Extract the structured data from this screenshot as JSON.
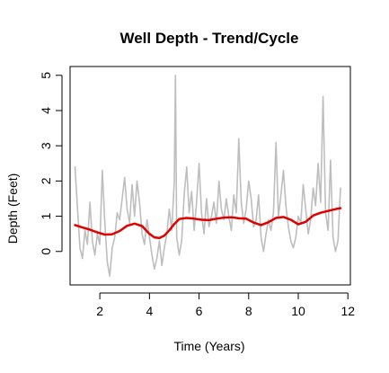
{
  "chart_data": {
    "type": "line",
    "title": "Well Depth - Trend/Cycle",
    "xlabel": "Time (Years)",
    "ylabel": "Depth (Feet)",
    "xlim": [
      0.8,
      12.1
    ],
    "ylim": [
      -0.95,
      5.25
    ],
    "xticks": [
      2,
      4,
      6,
      8,
      10,
      12
    ],
    "yticks": [
      0,
      1,
      2,
      3,
      4,
      5
    ],
    "grid": false,
    "legend": "none",
    "series": [
      {
        "role": "observed",
        "color": "#bebebe",
        "x": [
          1.0,
          1.1,
          1.2,
          1.3,
          1.4,
          1.5,
          1.6,
          1.7,
          1.8,
          1.9,
          2.0,
          2.1,
          2.2,
          2.3,
          2.4,
          2.5,
          2.6,
          2.7,
          2.8,
          2.9,
          3.0,
          3.1,
          3.2,
          3.3,
          3.4,
          3.5,
          3.6,
          3.7,
          3.8,
          3.9,
          4.0,
          4.1,
          4.2,
          4.3,
          4.4,
          4.5,
          4.6,
          4.7,
          4.8,
          4.9,
          5.0,
          5.05,
          5.1,
          5.2,
          5.3,
          5.4,
          5.5,
          5.6,
          5.7,
          5.8,
          5.9,
          6.0,
          6.1,
          6.2,
          6.3,
          6.4,
          6.5,
          6.6,
          6.7,
          6.8,
          6.9,
          7.0,
          7.1,
          7.2,
          7.3,
          7.4,
          7.5,
          7.6,
          7.7,
          7.8,
          7.9,
          8.0,
          8.1,
          8.2,
          8.3,
          8.4,
          8.5,
          8.6,
          8.7,
          8.8,
          8.9,
          9.0,
          9.1,
          9.2,
          9.3,
          9.4,
          9.5,
          9.6,
          9.7,
          9.8,
          9.9,
          10.0,
          10.1,
          10.2,
          10.3,
          10.4,
          10.5,
          10.6,
          10.7,
          10.8,
          10.9,
          11.0,
          11.1,
          11.2,
          11.3,
          11.4,
          11.5,
          11.6,
          11.7
        ],
        "y": [
          2.4,
          1.2,
          0.1,
          -0.2,
          0.6,
          0.2,
          1.4,
          0.3,
          -0.1,
          0.5,
          0.2,
          2.3,
          0.8,
          -0.3,
          -0.7,
          0.1,
          0.4,
          1.1,
          0.9,
          1.5,
          2.1,
          1.2,
          0.8,
          1.9,
          1.0,
          2.0,
          1.4,
          0.5,
          0.2,
          0.9,
          0.4,
          -0.1,
          -0.5,
          -0.2,
          0.3,
          -0.4,
          0.1,
          0.5,
          1.2,
          0.6,
          2.0,
          5.0,
          0.4,
          -0.1,
          0.3,
          1.6,
          2.4,
          1.1,
          1.7,
          0.6,
          1.4,
          2.5,
          1.1,
          0.5,
          1.5,
          0.7,
          1.0,
          1.4,
          0.8,
          2.0,
          1.2,
          0.9,
          1.5,
          1.0,
          0.6,
          1.6,
          1.1,
          3.2,
          1.4,
          0.8,
          1.2,
          2.0,
          1.5,
          0.7,
          0.9,
          1.6,
          0.4,
          0.0,
          0.5,
          0.9,
          0.6,
          1.1,
          3.1,
          1.0,
          1.6,
          2.3,
          1.3,
          0.7,
          0.3,
          0.1,
          0.4,
          1.0,
          0.8,
          1.9,
          1.2,
          0.5,
          0.9,
          1.8,
          1.3,
          2.5,
          1.4,
          4.4,
          1.1,
          0.6,
          2.6,
          0.4,
          0.0,
          0.3,
          1.8
        ]
      },
      {
        "role": "trend",
        "color": "#e00000",
        "x": [
          1.0,
          1.3,
          1.6,
          1.9,
          2.2,
          2.5,
          2.8,
          3.1,
          3.4,
          3.7,
          4.0,
          4.2,
          4.4,
          4.6,
          4.8,
          5.0,
          5.2,
          5.5,
          5.8,
          6.1,
          6.4,
          6.7,
          7.0,
          7.3,
          7.6,
          7.9,
          8.2,
          8.5,
          8.8,
          9.1,
          9.4,
          9.7,
          10.0,
          10.3,
          10.6,
          10.9,
          11.2,
          11.5,
          11.7
        ],
        "y": [
          0.75,
          0.68,
          0.62,
          0.54,
          0.48,
          0.49,
          0.58,
          0.73,
          0.79,
          0.72,
          0.5,
          0.4,
          0.38,
          0.45,
          0.6,
          0.78,
          0.92,
          0.95,
          0.93,
          0.9,
          0.89,
          0.93,
          0.96,
          0.97,
          0.94,
          0.93,
          0.82,
          0.75,
          0.83,
          0.95,
          0.98,
          0.9,
          0.77,
          0.84,
          1.02,
          1.1,
          1.15,
          1.2,
          1.23
        ]
      }
    ]
  }
}
